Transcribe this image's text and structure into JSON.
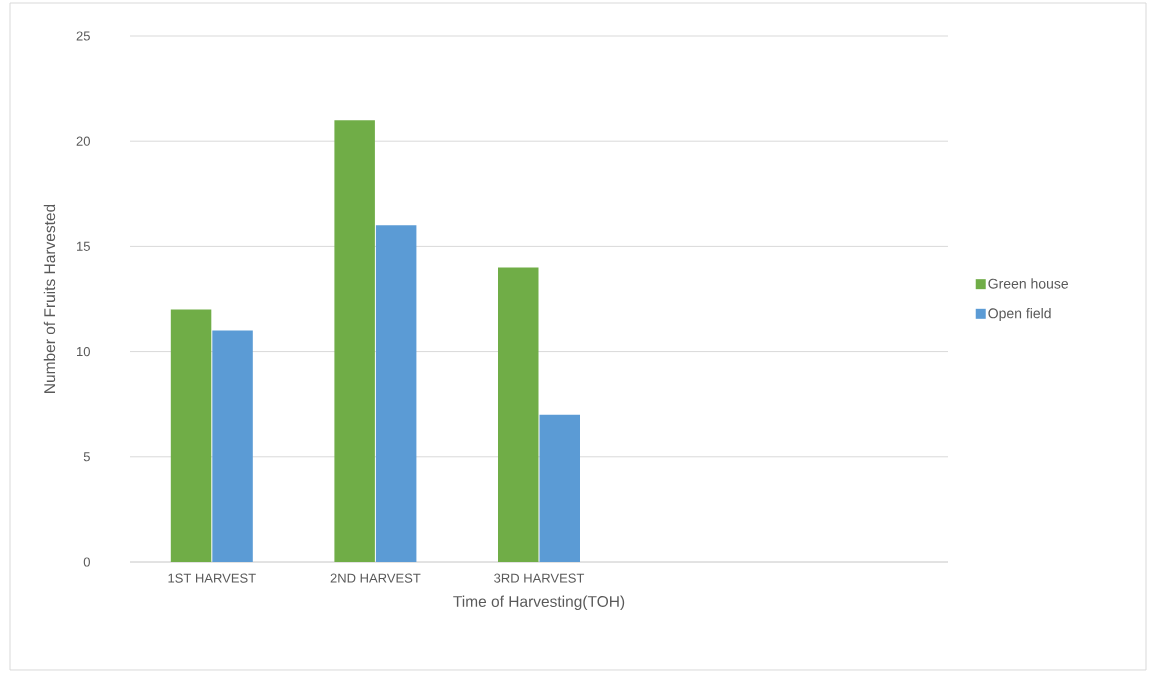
{
  "chart_data": {
    "type": "bar",
    "xlabel": "Time of Harvesting(TOH)",
    "ylabel": "Number of Fruits Harvested",
    "categories": [
      "1ST HARVEST",
      "2ND HARVEST",
      "3RD HARVEST",
      null,
      null
    ],
    "series": [
      {
        "name": "Green house",
        "color": "#70ad47",
        "values": [
          12,
          21,
          14,
          null,
          null
        ]
      },
      {
        "name": "Open field",
        "color": "#5b9bd5",
        "values": [
          11,
          16,
          7,
          null,
          null
        ]
      }
    ],
    "ylim": [
      0,
      25
    ],
    "yticks": [
      0,
      5,
      10,
      15,
      20,
      25
    ],
    "grid": "y",
    "legend": "right"
  }
}
